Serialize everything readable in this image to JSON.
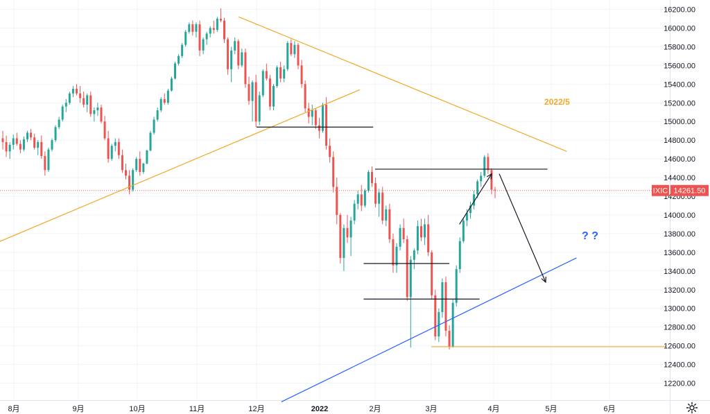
{
  "chart_data": {
    "type": "candlestick",
    "symbol": "IXIC",
    "last_price": "14261.50",
    "y_ticks": [
      12200,
      12400,
      12600,
      12800,
      13000,
      13200,
      13400,
      13600,
      13800,
      14000,
      14200,
      14400,
      14600,
      14800,
      15000,
      15200,
      15400,
      15600,
      15800,
      16000,
      16200
    ],
    "y_tick_labels": [
      "12200.00",
      "12400.00",
      "12600.00",
      "12800.00",
      "13000.00",
      "13200.00",
      "13400.00",
      "13600.00",
      "13800.00",
      "14000.00",
      "14200.00",
      "14400.00",
      "14600.00",
      "14800.00",
      "15000.00",
      "15200.00",
      "15400.00",
      "15600.00",
      "15800.00",
      "16000.00",
      "16200.00"
    ],
    "ylim": [
      12000,
      16340
    ],
    "x_labels": [
      {
        "label": "8月",
        "date": "2021-08-02",
        "bold": false
      },
      {
        "label": "9月",
        "date": "2021-09-01",
        "bold": false
      },
      {
        "label": "10月",
        "date": "2021-10-01",
        "bold": false
      },
      {
        "label": "11月",
        "date": "2021-11-01",
        "bold": false
      },
      {
        "label": "12月",
        "date": "2021-12-01",
        "bold": false
      },
      {
        "label": "2022",
        "date": "2022-01-03",
        "bold": true
      },
      {
        "label": "2月",
        "date": "2022-02-01",
        "bold": false
      },
      {
        "label": "3月",
        "date": "2022-03-01",
        "bold": false
      },
      {
        "label": "4月",
        "date": "2022-04-01",
        "bold": false
      },
      {
        "label": "5月",
        "date": "2022-05-02",
        "bold": false
      },
      {
        "label": "6月",
        "date": "2022-06-01",
        "bold": false
      }
    ],
    "candles": [
      [
        14820,
        14900,
        14700,
        14780
      ],
      [
        14780,
        14850,
        14620,
        14680
      ],
      [
        14680,
        14780,
        14600,
        14750
      ],
      [
        14750,
        14860,
        14700,
        14820
      ],
      [
        14820,
        14880,
        14740,
        14760
      ],
      [
        14760,
        14800,
        14660,
        14700
      ],
      [
        14700,
        14840,
        14680,
        14810
      ],
      [
        14810,
        14900,
        14780,
        14880
      ],
      [
        14880,
        14920,
        14800,
        14830
      ],
      [
        14830,
        14870,
        14700,
        14720
      ],
      [
        14720,
        14800,
        14640,
        14780
      ],
      [
        14780,
        14850,
        14600,
        14630
      ],
      [
        14630,
        14680,
        14420,
        14480
      ],
      [
        14480,
        14720,
        14460,
        14700
      ],
      [
        14700,
        14820,
        14680,
        14800
      ],
      [
        14800,
        14960,
        14780,
        14940
      ],
      [
        14940,
        15050,
        14920,
        15020
      ],
      [
        15020,
        15180,
        15000,
        15160
      ],
      [
        15160,
        15240,
        15100,
        15200
      ],
      [
        15200,
        15320,
        15180,
        15300
      ],
      [
        15300,
        15380,
        15260,
        15350
      ],
      [
        15350,
        15400,
        15280,
        15300
      ],
      [
        15300,
        15380,
        15200,
        15250
      ],
      [
        15250,
        15320,
        15150,
        15180
      ],
      [
        15180,
        15300,
        15100,
        15280
      ],
      [
        15280,
        15320,
        15050,
        15080
      ],
      [
        15080,
        15150,
        15000,
        15120
      ],
      [
        15120,
        15200,
        15060,
        15150
      ],
      [
        15150,
        15180,
        14980,
        15000
      ],
      [
        15000,
        15060,
        14800,
        14820
      ],
      [
        14820,
        14900,
        14560,
        14600
      ],
      [
        14600,
        14760,
        14580,
        14740
      ],
      [
        14740,
        14820,
        14680,
        14780
      ],
      [
        14780,
        14820,
        14600,
        14640
      ],
      [
        14640,
        14700,
        14450,
        14480
      ],
      [
        14480,
        14550,
        14380,
        14420
      ],
      [
        14420,
        14480,
        14220,
        14270
      ],
      [
        14270,
        14500,
        14250,
        14480
      ],
      [
        14480,
        14620,
        14460,
        14600
      ],
      [
        14600,
        14680,
        14420,
        14460
      ],
      [
        14460,
        14560,
        14440,
        14550
      ],
      [
        14550,
        14700,
        14540,
        14690
      ],
      [
        14690,
        14900,
        14680,
        14880
      ],
      [
        14880,
        15050,
        14860,
        15020
      ],
      [
        15020,
        15150,
        15000,
        15120
      ],
      [
        15120,
        15260,
        15100,
        15240
      ],
      [
        15240,
        15300,
        15180,
        15200
      ],
      [
        15200,
        15350,
        15180,
        15330
      ],
      [
        15330,
        15480,
        15320,
        15460
      ],
      [
        15460,
        15640,
        15450,
        15620
      ],
      [
        15620,
        15720,
        15600,
        15700
      ],
      [
        15700,
        15840,
        15680,
        15820
      ],
      [
        15820,
        15980,
        15800,
        15960
      ],
      [
        15960,
        16060,
        15940,
        16040
      ],
      [
        16040,
        16080,
        15920,
        15960
      ],
      [
        15960,
        16060,
        15900,
        16040
      ],
      [
        16040,
        16080,
        15700,
        15760
      ],
      [
        15760,
        15900,
        15720,
        15880
      ],
      [
        15880,
        15960,
        15820,
        15940
      ],
      [
        15940,
        16020,
        15900,
        16000
      ],
      [
        16000,
        16080,
        15940,
        15980
      ],
      [
        15980,
        16120,
        15960,
        16100
      ],
      [
        16100,
        16210,
        16060,
        16080
      ],
      [
        16080,
        16110,
        15840,
        15880
      ],
      [
        15880,
        15900,
        15500,
        15560
      ],
      [
        15560,
        15800,
        15420,
        15760
      ],
      [
        15760,
        15900,
        15720,
        15860
      ],
      [
        15860,
        15880,
        15560,
        15600
      ],
      [
        15600,
        15780,
        15580,
        15740
      ],
      [
        15740,
        15780,
        15360,
        15400
      ],
      [
        15400,
        15480,
        15180,
        15220
      ],
      [
        15220,
        15440,
        15000,
        15420
      ],
      [
        15420,
        15500,
        14940,
        15000
      ],
      [
        15000,
        15320,
        14960,
        15280
      ],
      [
        15280,
        15560,
        15260,
        15540
      ],
      [
        15540,
        15620,
        15440,
        15460
      ],
      [
        15460,
        15500,
        15120,
        15160
      ],
      [
        15160,
        15400,
        15120,
        15380
      ],
      [
        15380,
        15600,
        15360,
        15580
      ],
      [
        15580,
        15640,
        15420,
        15460
      ],
      [
        15460,
        15600,
        15420,
        15560
      ],
      [
        15560,
        15860,
        15540,
        15840
      ],
      [
        15840,
        15880,
        15700,
        15720
      ],
      [
        15720,
        15860,
        15680,
        15820
      ],
      [
        15820,
        15840,
        15560,
        15600
      ],
      [
        15600,
        15660,
        15360,
        15400
      ],
      [
        15400,
        15440,
        15100,
        15140
      ],
      [
        15140,
        15200,
        14980,
        15050
      ],
      [
        15050,
        15180,
        14960,
        15120
      ],
      [
        15120,
        15140,
        14920,
        14960
      ],
      [
        14960,
        15040,
        14820,
        14900
      ],
      [
        14900,
        15200,
        14880,
        15180
      ],
      [
        15180,
        15260,
        14700,
        14740
      ],
      [
        14740,
        14820,
        14560,
        14620
      ],
      [
        14620,
        14680,
        14240,
        14300
      ],
      [
        14300,
        14400,
        13900,
        14000
      ],
      [
        14000,
        14020,
        13480,
        13540
      ],
      [
        13540,
        13900,
        13400,
        13860
      ],
      [
        13860,
        14000,
        13700,
        13760
      ],
      [
        13760,
        13980,
        13560,
        13940
      ],
      [
        13940,
        14160,
        13900,
        14120
      ],
      [
        14120,
        14260,
        14060,
        14220
      ],
      [
        14220,
        14320,
        14040,
        14100
      ],
      [
        14100,
        14280,
        14080,
        14260
      ],
      [
        14260,
        14480,
        14240,
        14460
      ],
      [
        14460,
        14520,
        14300,
        14340
      ],
      [
        14340,
        14400,
        14080,
        14120
      ],
      [
        14120,
        14280,
        13980,
        14240
      ],
      [
        14240,
        14300,
        13900,
        13940
      ],
      [
        13940,
        14100,
        13880,
        14060
      ],
      [
        14060,
        14120,
        13700,
        13740
      ],
      [
        13740,
        13800,
        13380,
        13460
      ],
      [
        13460,
        13700,
        13380,
        13660
      ],
      [
        13660,
        13900,
        13620,
        13860
      ],
      [
        13860,
        13960,
        13700,
        13740
      ],
      [
        13740,
        13780,
        13080,
        13120
      ],
      [
        13120,
        13560,
        12580,
        13520
      ],
      [
        13520,
        13640,
        13420,
        13620
      ],
      [
        13620,
        13940,
        13580,
        13880
      ],
      [
        13880,
        13960,
        13720,
        13760
      ],
      [
        13760,
        13960,
        13680,
        13900
      ],
      [
        13900,
        14000,
        13560,
        13600
      ],
      [
        13600,
        13620,
        13100,
        13140
      ],
      [
        13140,
        13200,
        12660,
        12700
      ],
      [
        12700,
        13000,
        12640,
        12960
      ],
      [
        12960,
        13320,
        12900,
        13280
      ],
      [
        13280,
        13340,
        12700,
        12760
      ],
      [
        12760,
        12820,
        12560,
        12590
      ],
      [
        12590,
        13100,
        12580,
        13060
      ],
      [
        13060,
        13460,
        13020,
        13420
      ],
      [
        13420,
        13760,
        13380,
        13720
      ],
      [
        13720,
        13960,
        13700,
        13940
      ],
      [
        13940,
        14060,
        13880,
        14020
      ],
      [
        14020,
        14140,
        13960,
        14100
      ],
      [
        14100,
        14260,
        14060,
        14220
      ],
      [
        14220,
        14380,
        14180,
        14360
      ],
      [
        14360,
        14460,
        14300,
        14420
      ],
      [
        14420,
        14640,
        14400,
        14620
      ],
      [
        14620,
        14660,
        14440,
        14480
      ],
      [
        14480,
        14500,
        14220,
        14270
      ],
      [
        14270,
        14300,
        14180,
        14262
      ]
    ],
    "trendlines": [
      {
        "name": "resistance-orange",
        "color": "#f5a623",
        "from": {
          "date": "2021-11-22",
          "price": 16120
        },
        "to": {
          "date": "2022-05-10",
          "price": 14680
        }
      },
      {
        "name": "support-orange",
        "color": "#f5a623",
        "from": {
          "date": "2021-07-08",
          "price": 13560
        },
        "to": {
          "date": "2022-01-24",
          "price": 15340
        }
      },
      {
        "name": "support-blue",
        "color": "#2962ff",
        "from": {
          "date": "2021-12-14",
          "price": 12000
        },
        "to": {
          "date": "2022-05-15",
          "price": 13540
        }
      }
    ],
    "horizontal_lines": [
      {
        "name": "level-15000",
        "color": "#131722",
        "price": 14940,
        "from": "2021-12-01",
        "to": "2022-01-31"
      },
      {
        "name": "level-14480",
        "color": "#131722",
        "price": 14490,
        "from": "2022-02-01",
        "to": "2022-04-30"
      },
      {
        "name": "level-13480",
        "color": "#131722",
        "price": 13480,
        "from": "2022-01-26",
        "to": "2022-03-10"
      },
      {
        "name": "level-13100",
        "color": "#131722",
        "price": 13100,
        "from": "2022-01-26",
        "to": "2022-03-25"
      },
      {
        "name": "level-12590",
        "color": "#f5a623",
        "price": 12590,
        "from": "2022-03-01",
        "to": "2022-06-30"
      }
    ],
    "arrows": [
      {
        "name": "projection-arrow-down",
        "from": {
          "date": "2022-04-04",
          "price": 14440
        },
        "to": {
          "date": "2022-04-29",
          "price": 13280
        }
      },
      {
        "name": "rise-arrow-up",
        "from": {
          "date": "2022-03-15",
          "price": 13900
        },
        "to": {
          "date": "2022-03-31",
          "price": 14440
        }
      }
    ],
    "annotations": [
      {
        "name": "date-annotation",
        "text": "2022/5",
        "date": "2022-05-05",
        "price": 15180,
        "style": "orange"
      },
      {
        "name": "question-annotation",
        "text": "? ?",
        "date": "2022-05-22",
        "price": 13740,
        "style": "blue"
      }
    ],
    "colors": {
      "up": "#26a69a",
      "down": "#ef5350",
      "price_tag": "#ef5350",
      "grid": "#f0f3fa"
    },
    "grid": true
  }
}
